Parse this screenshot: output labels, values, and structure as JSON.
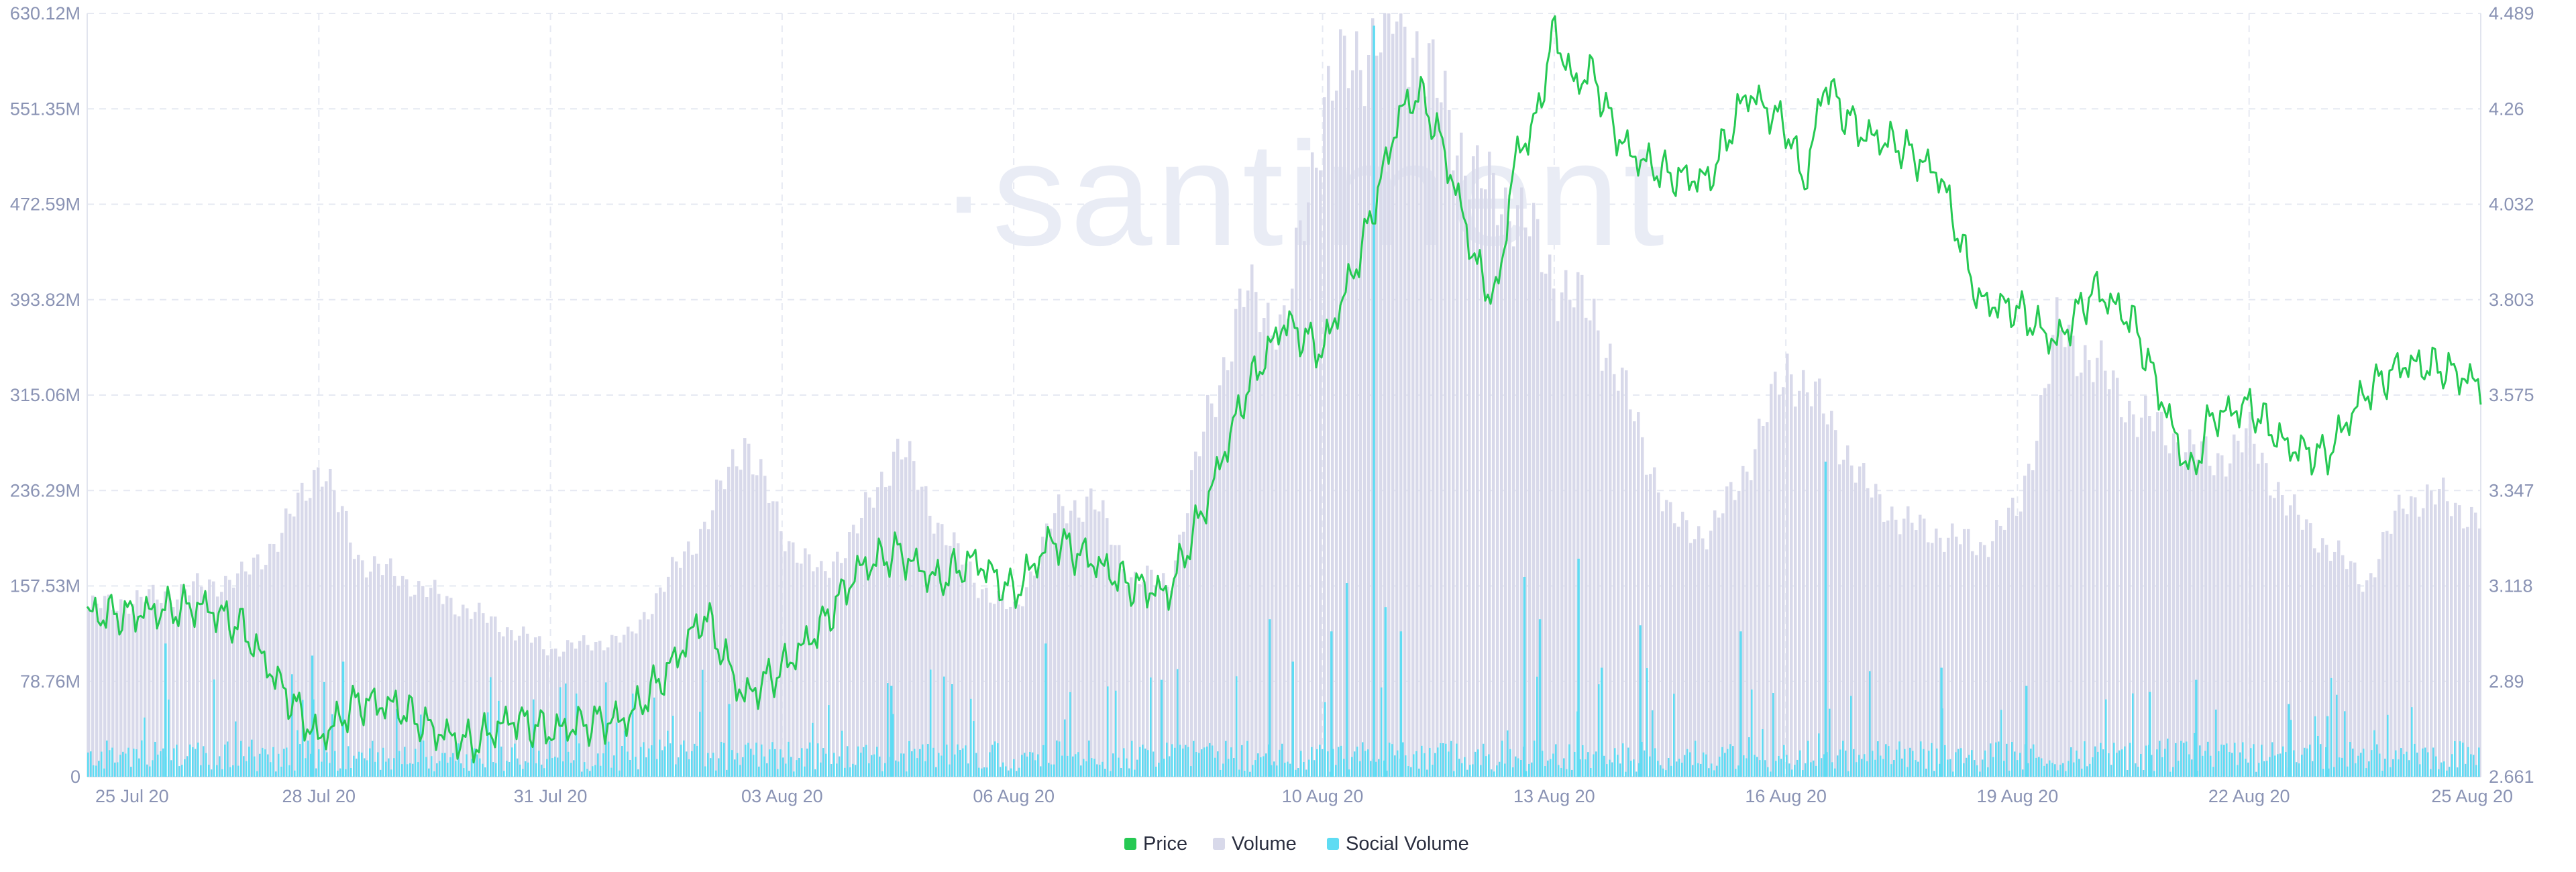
{
  "chart_data": {
    "type": "line",
    "title": "",
    "watermark": "·santiment",
    "colors": {
      "price": "#26c953",
      "volume": "#d8d9ea",
      "social_volume": "#5fdcf3",
      "grid": "#e6e9f2",
      "axis_text": "#8a93b4"
    },
    "x_range": [
      "2020-07-25",
      "2020-08-25"
    ],
    "x_ticks": [
      "25 Jul 20",
      "28 Jul 20",
      "31 Jul 20",
      "03 Aug 20",
      "06 Aug 20",
      "10 Aug 20",
      "13 Aug 20",
      "16 Aug 20",
      "19 Aug 20",
      "22 Aug 20",
      "25 Aug 20"
    ],
    "x_tick_positions_days": [
      0,
      3,
      6,
      9,
      12,
      16,
      19,
      22,
      25,
      28,
      31
    ],
    "y_left": {
      "ticks": [
        "0",
        "78.76M",
        "157.53M",
        "236.29M",
        "315.06M",
        "393.82M",
        "472.59M",
        "551.35M",
        "630.12M"
      ],
      "min": 0,
      "max": 630120000
    },
    "y_right": {
      "ticks": [
        "2.661",
        "2.89",
        "3.118",
        "3.347",
        "3.575",
        "3.803",
        "4.032",
        "4.26",
        "4.489"
      ],
      "min": 2.661,
      "max": 4.489
    },
    "grid": true,
    "legend_position": "bottom-center",
    "legend": [
      "Price",
      "Volume",
      "Social Volume"
    ],
    "series": [
      {
        "name": "Price",
        "axis": "right",
        "x_days": [
          0,
          0.5,
          1,
          1.5,
          2,
          2.5,
          3,
          3.5,
          4,
          4.5,
          5,
          5.5,
          6,
          6.5,
          7,
          7.5,
          8,
          8.5,
          9,
          9.5,
          10,
          10.5,
          11,
          11.5,
          12,
          12.5,
          13,
          13.5,
          14,
          14.5,
          15,
          15.5,
          16,
          16.5,
          17,
          17.25,
          17.5,
          17.75,
          18,
          18.25,
          18.5,
          18.75,
          19,
          19.25,
          19.5,
          19.75,
          20,
          20.5,
          21,
          21.5,
          22,
          22.25,
          22.5,
          22.75,
          23,
          23.5,
          24,
          24.5,
          25,
          25.5,
          26,
          26.5,
          27,
          27.25,
          27.5,
          28,
          28.5,
          29,
          29.5,
          30,
          30.5,
          31
        ],
        "values": [
          3.05,
          3.05,
          3.06,
          3.07,
          3.02,
          2.88,
          2.75,
          2.84,
          2.83,
          2.77,
          2.74,
          2.8,
          2.77,
          2.79,
          2.8,
          2.91,
          3.05,
          2.85,
          2.92,
          3.02,
          3.16,
          3.2,
          3.13,
          3.18,
          3.1,
          3.23,
          3.18,
          3.12,
          3.1,
          3.32,
          3.58,
          3.75,
          3.68,
          3.92,
          4.25,
          4.3,
          4.2,
          4.05,
          3.88,
          3.8,
          4.15,
          4.22,
          4.45,
          4.32,
          4.35,
          4.22,
          4.15,
          4.1,
          4.09,
          4.3,
          4.22,
          4.08,
          4.33,
          4.25,
          4.2,
          4.17,
          4.1,
          3.8,
          3.78,
          3.7,
          3.83,
          3.75,
          3.5,
          3.38,
          3.52,
          3.55,
          3.45,
          3.43,
          3.58,
          3.65,
          3.64,
          3.6
        ]
      },
      {
        "name": "Volume",
        "axis": "left",
        "x_days": [
          0,
          1,
          2,
          2.5,
          3,
          3.5,
          4,
          5,
          6,
          6.5,
          7,
          8,
          8.5,
          9,
          9.5,
          10,
          10.5,
          11,
          11.5,
          12,
          12.5,
          13,
          13.5,
          14,
          14.5,
          15,
          15.5,
          16,
          16.5,
          17,
          17.5,
          18,
          18.5,
          19,
          19.5,
          20,
          20.5,
          21,
          21.5,
          22,
          22.5,
          23,
          23.5,
          24,
          24.5,
          25,
          25.5,
          26,
          26.5,
          27,
          27.5,
          28,
          28.5,
          29,
          29.5,
          30,
          30.5,
          31
        ],
        "values": [
          140000000,
          150000000,
          165000000,
          200000000,
          260000000,
          180000000,
          165000000,
          135000000,
          105000000,
          110000000,
          115000000,
          210000000,
          280000000,
          200000000,
          165000000,
          210000000,
          275000000,
          210000000,
          160000000,
          135000000,
          215000000,
          230000000,
          165000000,
          160000000,
          300000000,
          400000000,
          370000000,
          560000000,
          600000000,
          630000000,
          560000000,
          490000000,
          470000000,
          410000000,
          380000000,
          300000000,
          210000000,
          200000000,
          260000000,
          340000000,
          300000000,
          240000000,
          210000000,
          200000000,
          190000000,
          220000000,
          370000000,
          340000000,
          300000000,
          280000000,
          260000000,
          280000000,
          220000000,
          190000000,
          160000000,
          230000000,
          230000000,
          210000000
        ]
      },
      {
        "name": "Social Volume",
        "axis": "left",
        "x_days": [
          1.0,
          2.9,
          3.3,
          8.3,
          10.4,
          12.4,
          13.9,
          15.3,
          15.6,
          16.1,
          16.3,
          16.65,
          16.8,
          17.0,
          18.6,
          18.8,
          19.3,
          19.6,
          20.1,
          21.4,
          22.5,
          24.0,
          25.1,
          26.7,
          27.3,
          28.5,
          29.0
        ],
        "values": [
          110000000,
          100000000,
          95000000,
          60000000,
          75000000,
          110000000,
          80000000,
          130000000,
          95000000,
          120000000,
          160000000,
          620000000,
          140000000,
          120000000,
          165000000,
          130000000,
          180000000,
          90000000,
          125000000,
          120000000,
          260000000,
          90000000,
          75000000,
          70000000,
          80000000,
          60000000,
          50000000
        ]
      }
    ]
  }
}
